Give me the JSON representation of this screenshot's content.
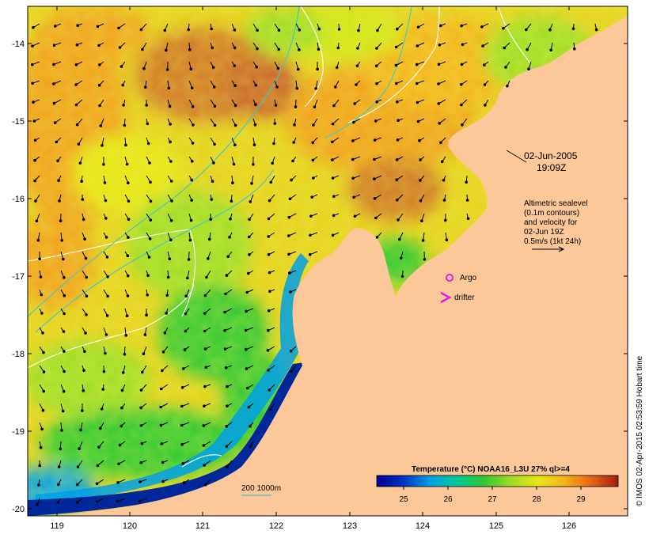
{
  "map": {
    "x_ticks": [
      "119",
      "120",
      "121",
      "122",
      "123",
      "124",
      "125",
      "126"
    ],
    "y_ticks": [
      "-14",
      "-15",
      "-16",
      "-17",
      "-18",
      "-19",
      "-20"
    ],
    "colors": {
      "land": "#fcc89a",
      "sst_cool": "#32c832",
      "sst_mid": "#d2e614",
      "sst_warm": "#f0a01e",
      "sst_hot": "#c86428",
      "coast_deep": "#00289b",
      "contour": "#ffffff",
      "isobath": "#3cc8c8",
      "argo": "#e020e0",
      "drifter": "#e020e0"
    }
  },
  "annotations": {
    "date": "02-Jun-2005",
    "time": "19:09Z",
    "altimetry_lines": [
      "Altimetric sealevel",
      "(0.1m contours)",
      "and velocity for",
      "02-Jun 19Z",
      "0.5m/s (1kt 24h)"
    ],
    "argo_label": "Argo",
    "drifter_label": "drifter",
    "isobath_label": "200  1000m"
  },
  "colorbar": {
    "title": "Temperature (°C) NOAA16_L3U 27% ql>=4",
    "tick_labels": [
      "25",
      "26",
      "27",
      "28",
      "29"
    ],
    "stops": [
      "#00008c",
      "#0032c8",
      "#00a0e6",
      "#00c896",
      "#32c832",
      "#a0dc28",
      "#e6e614",
      "#f5b41e",
      "#e66414",
      "#a01e0a"
    ]
  },
  "credit": "© IMOS 02-Apr-2015 02:53:59 Hobart time"
}
